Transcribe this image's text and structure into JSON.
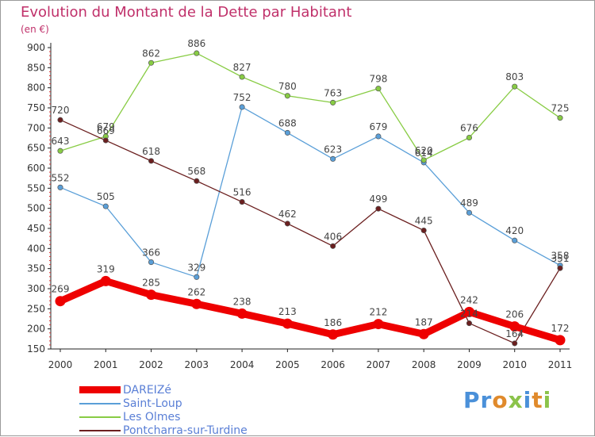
{
  "header": {
    "title": "Evolution du Montant de la Dette par Habitant",
    "unit": "(en €)"
  },
  "logo": {
    "text": "Proxiti"
  },
  "chart_data": {
    "type": "line",
    "title": "Evolution du Montant de la Dette par Habitant",
    "subtitle": "(en €)",
    "xlabel": "",
    "ylabel": "",
    "x": [
      "2000",
      "2001",
      "2002",
      "2003",
      "2004",
      "2005",
      "2006",
      "2007",
      "2008",
      "2009",
      "2010",
      "2011"
    ],
    "ylim": [
      150,
      900
    ],
    "yticks": [
      150,
      200,
      250,
      300,
      350,
      400,
      450,
      500,
      550,
      600,
      650,
      700,
      750,
      800,
      850,
      900
    ],
    "grid": false,
    "legend_position": "bottom-left",
    "series": [
      {
        "name": "DAREIZé",
        "color": "#ee0000",
        "values": [
          269,
          319,
          285,
          262,
          238,
          213,
          186,
          212,
          187,
          242,
          206,
          172
        ]
      },
      {
        "name": "Saint-Loup",
        "color": "#5a9fd8",
        "values": [
          552,
          505,
          366,
          329,
          752,
          688,
          623,
          679,
          614,
          489,
          420,
          358
        ]
      },
      {
        "name": "Les Olmes",
        "color": "#88cc44",
        "values": [
          643,
          679,
          862,
          886,
          827,
          780,
          763,
          798,
          620,
          676,
          803,
          725
        ]
      },
      {
        "name": "Pontcharra-sur-Turdine",
        "color": "#6b1f1f",
        "values": [
          720,
          669,
          618,
          568,
          516,
          462,
          406,
          499,
          445,
          214,
          164,
          351
        ]
      }
    ]
  }
}
